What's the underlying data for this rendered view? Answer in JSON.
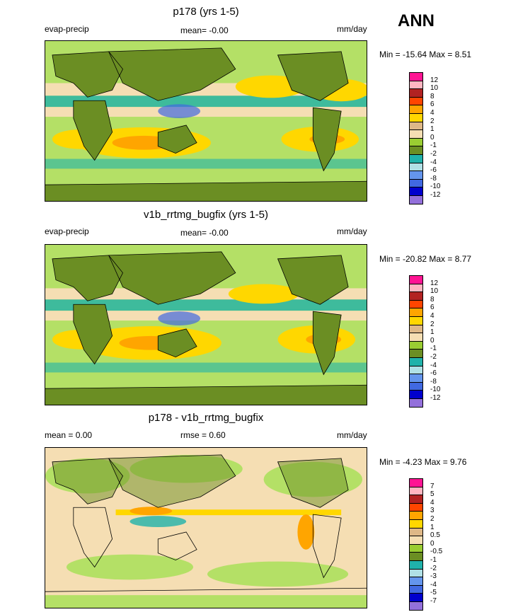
{
  "season": "ANN",
  "panels": [
    {
      "title": "p178 (yrs 1-5)",
      "left_label": "evap-precip",
      "center_label": "mean=  -0.00",
      "right_label": "mm/day",
      "minmax": "Min = -15.64 Max =   8.51",
      "colorbar": {
        "colors": [
          "#ff1493",
          "#ffb6c1",
          "#b22222",
          "#ff4500",
          "#ffa500",
          "#ffd700",
          "#deb887",
          "#f5deb3",
          "#9acd32",
          "#6b8e23",
          "#20b2aa",
          "#b0e0e6",
          "#6495ed",
          "#4169e1",
          "#0000cd",
          "#9370db"
        ],
        "labels": [
          "12",
          "10",
          "8",
          "6",
          "4",
          "2",
          "1",
          "0",
          "-1",
          "-2",
          "-4",
          "-6",
          "-8",
          "-10",
          "-12"
        ]
      }
    },
    {
      "title": "v1b_rrtmg_bugfix (yrs 1-5)",
      "left_label": "evap-precip",
      "center_label": "mean=  -0.00",
      "right_label": "mm/day",
      "minmax": "Min = -20.82 Max =   8.77",
      "colorbar": {
        "colors": [
          "#ff1493",
          "#ffb6c1",
          "#b22222",
          "#ff4500",
          "#ffa500",
          "#ffd700",
          "#deb887",
          "#f5deb3",
          "#9acd32",
          "#6b8e23",
          "#20b2aa",
          "#b0e0e6",
          "#6495ed",
          "#4169e1",
          "#0000cd",
          "#9370db"
        ],
        "labels": [
          "12",
          "10",
          "8",
          "6",
          "4",
          "2",
          "1",
          "0",
          "-1",
          "-2",
          "-4",
          "-6",
          "-8",
          "-10",
          "-12"
        ]
      }
    },
    {
      "title": "p178 - v1b_rrtmg_bugfix",
      "left_label": "mean =   0.00",
      "center_label": "rmse =   0.60",
      "right_label": "mm/day",
      "minmax": "Min =  -4.23 Max =   9.76",
      "colorbar": {
        "colors": [
          "#ff1493",
          "#ffb6c1",
          "#b22222",
          "#ff4500",
          "#ffa500",
          "#ffd700",
          "#deb887",
          "#f5deb3",
          "#9acd32",
          "#6b8e23",
          "#20b2aa",
          "#b0e0e6",
          "#6495ed",
          "#4169e1",
          "#0000cd",
          "#9370db"
        ],
        "labels": [
          "7",
          "5",
          "4",
          "3",
          "2",
          "1",
          "0.5",
          "0",
          "-0.5",
          "-1",
          "-2",
          "-3",
          "-4",
          "-5",
          "-7"
        ]
      }
    }
  ]
}
